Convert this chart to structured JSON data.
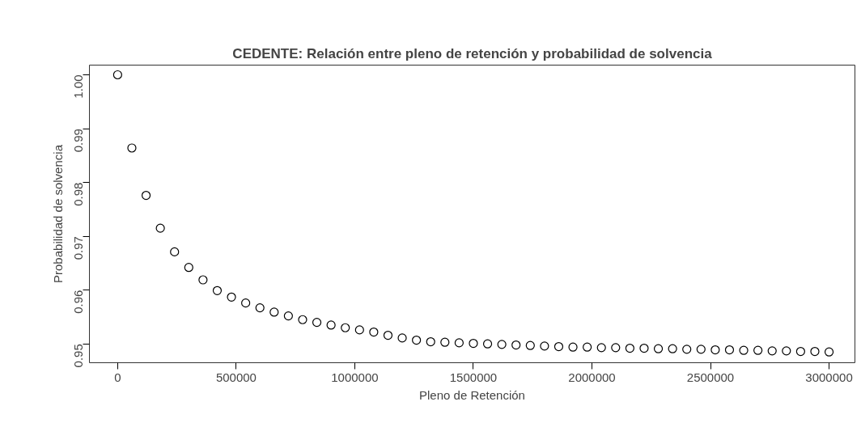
{
  "chart_data": {
    "type": "scatter",
    "title": "CEDENTE: Relación entre pleno de retención y probabilidad de solvencia",
    "xlabel": "Pleno de Retención",
    "ylabel": "Probabilidad de solvencia",
    "x": [
      0,
      60000,
      120000,
      180000,
      240000,
      300000,
      360000,
      420000,
      480000,
      540000,
      600000,
      660000,
      720000,
      780000,
      840000,
      900000,
      960000,
      1020000,
      1080000,
      1140000,
      1200000,
      1260000,
      1320000,
      1380000,
      1440000,
      1500000,
      1560000,
      1620000,
      1680000,
      1740000,
      1800000,
      1860000,
      1920000,
      1980000,
      2040000,
      2100000,
      2160000,
      2220000,
      2280000,
      2340000,
      2400000,
      2460000,
      2520000,
      2580000,
      2640000,
      2700000,
      2760000,
      2820000,
      2880000,
      2940000,
      3000000
    ],
    "values": [
      1.0,
      0.9864,
      0.9776,
      0.9715,
      0.9671,
      0.9642,
      0.9619,
      0.9599,
      0.9587,
      0.9576,
      0.9567,
      0.9559,
      0.9552,
      0.9545,
      0.954,
      0.9535,
      0.953,
      0.9526,
      0.9522,
      0.9516,
      0.9511,
      0.9507,
      0.9504,
      0.9503,
      0.9502,
      0.9501,
      0.95,
      0.9499,
      0.9498,
      0.9497,
      0.9496,
      0.9495,
      0.9494,
      0.9494,
      0.9493,
      0.9493,
      0.9492,
      0.9492,
      0.9491,
      0.9491,
      0.949,
      0.949,
      0.9489,
      0.9489,
      0.9488,
      0.9488,
      0.9487,
      0.9487,
      0.9486,
      0.9486,
      0.9485
    ],
    "color": "#000000",
    "marker": "circle",
    "xlim": [
      -119000,
      3109000
    ],
    "ylim": [
      0.9465,
      1.0018
    ],
    "xticks": [
      0,
      500000,
      1000000,
      1500000,
      2000000,
      2500000,
      3000000
    ],
    "yticks": [
      {
        "value": 0.95,
        "label": "0.95"
      },
      {
        "value": 0.96,
        "label": "0.96"
      },
      {
        "value": 0.97,
        "label": "0.97"
      },
      {
        "value": 0.98,
        "label": "0.98"
      },
      {
        "value": 0.99,
        "label": "0.99"
      },
      {
        "value": 1.0,
        "label": "1.00"
      }
    ],
    "grid": false
  }
}
